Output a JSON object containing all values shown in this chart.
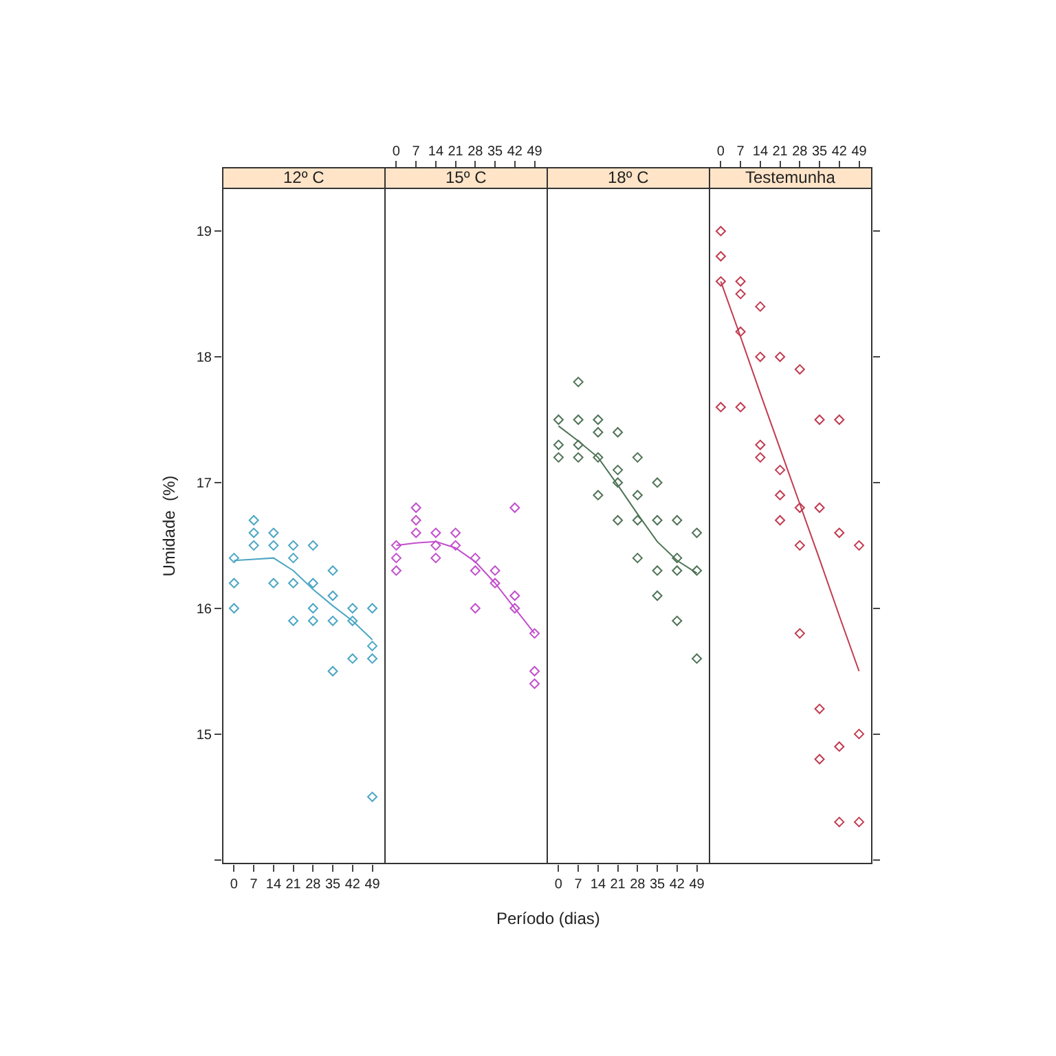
{
  "chart_data": [
    {
      "type": "scatter",
      "title": "12º C",
      "ylabel": "Umidade  (%)",
      "xlim": [
        -4,
        53.5
      ],
      "ylim": [
        13.97,
        19.34
      ],
      "xticks": [
        0,
        7,
        14,
        21,
        28,
        35,
        42,
        49
      ],
      "yticks": [
        {
          "value": 14,
          "label": null
        },
        15,
        16,
        17,
        18,
        19
      ],
      "series": [
        {
          "type": "scatter",
          "marker": "diamond",
          "color": "#4aa6c4",
          "x": [
            0,
            0,
            0,
            7,
            7,
            7,
            14,
            14,
            14,
            21,
            21,
            21,
            21,
            28,
            28,
            28,
            28,
            35,
            35,
            35,
            35,
            42,
            42,
            42,
            49,
            49,
            49,
            49
          ],
          "values": [
            16.4,
            16.2,
            16.0,
            16.7,
            16.6,
            16.5,
            16.6,
            16.5,
            16.2,
            16.5,
            16.4,
            16.2,
            15.9,
            16.5,
            16.2,
            16.0,
            15.9,
            16.3,
            16.1,
            15.9,
            15.5,
            16.0,
            15.9,
            15.6,
            16.0,
            15.7,
            15.6,
            14.5
          ]
        },
        {
          "type": "line",
          "color": "#4aa6c4",
          "x": [
            0,
            7,
            14,
            21,
            28,
            35,
            42,
            49
          ],
          "values": [
            16.38,
            16.39,
            16.4,
            16.3,
            16.15,
            16.02,
            15.9,
            15.75
          ]
        }
      ]
    },
    {
      "type": "scatter",
      "title": "15º C",
      "xlabel": "Período (dias)",
      "xlim": [
        -4,
        53.5
      ],
      "ylim": [
        13.97,
        19.34
      ],
      "xticks": [
        0,
        7,
        14,
        21,
        28,
        35,
        42,
        49
      ],
      "tick_labels": "x",
      "series": [
        {
          "type": "scatter",
          "marker": "diamond",
          "color": "#c24fcc",
          "x": [
            0,
            0,
            0,
            7,
            7,
            7,
            14,
            14,
            14,
            21,
            21,
            28,
            28,
            28,
            35,
            35,
            42,
            42,
            42,
            49,
            49,
            49
          ],
          "values": [
            16.5,
            16.4,
            16.3,
            16.8,
            16.7,
            16.6,
            16.6,
            16.5,
            16.4,
            16.6,
            16.5,
            16.4,
            16.3,
            16.0,
            16.3,
            16.2,
            16.8,
            16.1,
            16.0,
            15.8,
            15.5,
            15.4
          ]
        },
        {
          "type": "line",
          "color": "#c24fcc",
          "x": [
            0,
            7,
            14,
            21,
            28,
            35,
            42,
            49
          ],
          "values": [
            16.5,
            16.52,
            16.53,
            16.48,
            16.37,
            16.2,
            16.0,
            15.8
          ]
        }
      ]
    },
    {
      "type": "scatter",
      "title": "18º C",
      "xlim": [
        -4,
        53.5
      ],
      "ylim": [
        13.97,
        19.34
      ],
      "xticks": [
        0,
        7,
        14,
        21,
        28,
        35,
        42,
        49
      ],
      "tick_labels": "x",
      "series": [
        {
          "type": "scatter",
          "marker": "diamond",
          "color": "#4e7355",
          "x": [
            0,
            0,
            0,
            7,
            7,
            7,
            7,
            14,
            14,
            14,
            14,
            21,
            21,
            21,
            21,
            28,
            28,
            28,
            28,
            35,
            35,
            35,
            35,
            42,
            42,
            42,
            42,
            49,
            49,
            49
          ],
          "values": [
            17.5,
            17.3,
            17.2,
            17.8,
            17.5,
            17.3,
            17.2,
            17.5,
            17.4,
            17.2,
            16.9,
            17.4,
            17.1,
            17.0,
            16.7,
            17.2,
            16.9,
            16.7,
            16.4,
            17.0,
            16.7,
            16.3,
            16.1,
            16.7,
            16.4,
            16.3,
            15.9,
            16.6,
            16.3,
            15.6
          ]
        },
        {
          "type": "line",
          "color": "#4e7355",
          "x": [
            0,
            7,
            14,
            21,
            28,
            35,
            42,
            49
          ],
          "values": [
            17.45,
            17.33,
            17.2,
            16.98,
            16.75,
            16.53,
            16.38,
            16.28
          ]
        }
      ]
    },
    {
      "type": "scatter",
      "title": "Testemunha",
      "xlim": [
        -4,
        53.5
      ],
      "ylim": [
        13.97,
        19.34
      ],
      "xticks": [
        0,
        7,
        14,
        21,
        28,
        35,
        42,
        49
      ],
      "yticks": [
        {
          "value": 14,
          "label": null
        },
        15,
        16,
        17,
        18,
        19
      ],
      "tick_labels": "x",
      "series": [
        {
          "type": "scatter",
          "marker": "diamond",
          "color": "#c23a50",
          "x": [
            0,
            0,
            0,
            0,
            7,
            7,
            7,
            7,
            14,
            14,
            14,
            14,
            21,
            21,
            21,
            21,
            28,
            28,
            28,
            28,
            35,
            35,
            35,
            35,
            42,
            42,
            42,
            42,
            49,
            49,
            49
          ],
          "values": [
            19.0,
            18.8,
            18.6,
            17.6,
            18.6,
            18.5,
            18.2,
            17.6,
            18.4,
            18.0,
            17.3,
            17.2,
            18.0,
            17.1,
            16.9,
            16.7,
            17.9,
            16.8,
            16.5,
            15.8,
            17.5,
            16.8,
            15.2,
            14.8,
            17.5,
            16.6,
            14.9,
            14.3,
            16.5,
            15.0,
            14.3
          ]
        },
        {
          "type": "line",
          "color": "#c23a50",
          "x": [
            0,
            7,
            14,
            21,
            28,
            35,
            42,
            49
          ],
          "values": [
            18.6,
            18.16,
            17.71,
            17.27,
            16.83,
            16.39,
            15.94,
            15.5
          ]
        }
      ]
    }
  ]
}
